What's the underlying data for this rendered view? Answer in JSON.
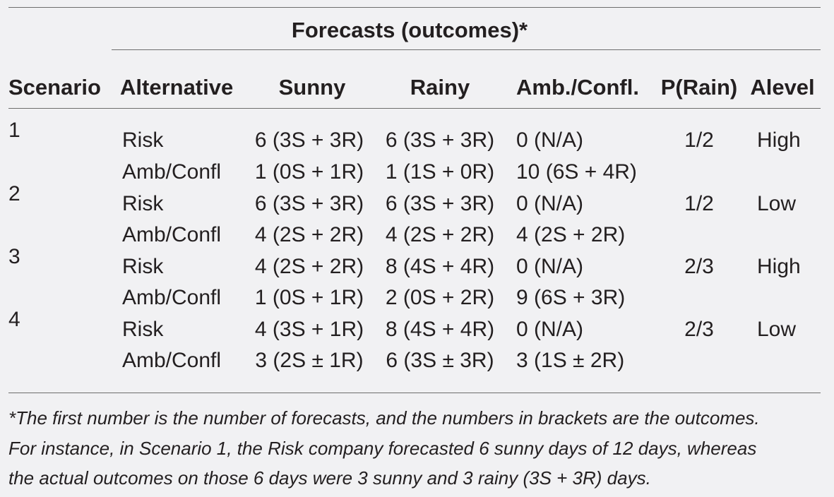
{
  "table": {
    "group_header": "Forecasts (outcomes)*",
    "columns": [
      "Scenario",
      "Alternative",
      "Sunny",
      "Rainy",
      "Amb./Confl.",
      "P(Rain)",
      "Alevel"
    ],
    "rows": [
      {
        "scenario": "1",
        "alternative": "Risk",
        "sunny": "6 (3S + 3R)",
        "rainy": "6 (3S + 3R)",
        "amb": "0 (N/A)",
        "prain": "1/2",
        "alevel": "High"
      },
      {
        "scenario": "",
        "alternative": "Amb/Confl",
        "sunny": "1 (0S + 1R)",
        "rainy": "1 (1S + 0R)",
        "amb": "10 (6S + 4R)",
        "prain": "",
        "alevel": ""
      },
      {
        "scenario": "2",
        "alternative": "Risk",
        "sunny": "6 (3S + 3R)",
        "rainy": "6 (3S + 3R)",
        "amb": "0 (N/A)",
        "prain": "1/2",
        "alevel": "Low"
      },
      {
        "scenario": "",
        "alternative": "Amb/Confl",
        "sunny": "4 (2S + 2R)",
        "rainy": "4 (2S + 2R)",
        "amb": "4 (2S + 2R)",
        "prain": "",
        "alevel": ""
      },
      {
        "scenario": "3",
        "alternative": "Risk",
        "sunny": "4 (2S + 2R)",
        "rainy": "8 (4S + 4R)",
        "amb": "0 (N/A)",
        "prain": "2/3",
        "alevel": "High"
      },
      {
        "scenario": "",
        "alternative": "Amb/Confl",
        "sunny": "1 (0S + 1R)",
        "rainy": "2 (0S + 2R)",
        "amb": "9 (6S + 3R)",
        "prain": "",
        "alevel": ""
      },
      {
        "scenario": "4",
        "alternative": "Risk",
        "sunny": "4 (3S + 1R)",
        "rainy": "8 (4S + 4R)",
        "amb": "0 (N/A)",
        "prain": "2/3",
        "alevel": "Low"
      },
      {
        "scenario": "",
        "alternative": "Amb/Confl",
        "sunny": "3 (2S ± 1R)",
        "rainy": "6 (3S ± 3R)",
        "amb": "3 (1S ± 2R)",
        "prain": "",
        "alevel": ""
      }
    ],
    "footnote": [
      "*The first number is the number of forecasts, and the numbers in brackets are the outcomes.",
      "For instance, in Scenario 1, the Risk company forecasted 6 sunny days of 12 days, whereas",
      "the actual outcomes on those 6 days were 3 sunny and 3 rainy (3S + 3R) days."
    ]
  }
}
